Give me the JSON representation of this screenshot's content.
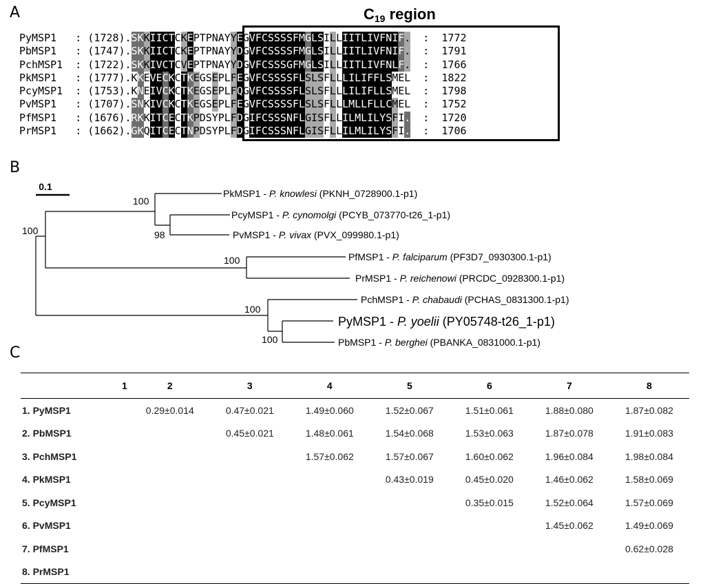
{
  "panels": {
    "a": "A",
    "b": "B",
    "c": "C"
  },
  "alignment": {
    "region_title_main": "C",
    "region_title_sub": "19",
    "region_title_rest": " region",
    "rows": [
      {
        "name": "PyMSP1",
        "start": "(1728)",
        "seq": ".SKKIICTCKEPTPNAYYEGVFCSSSSFMGLSILLIITLIVFNIF.",
        "end": "1772",
        "shade": "  dblbbb   bb      lbbbbbbbbbllbbbbbbbbbbbbbbbdll"
      },
      {
        "name": "PbMSP1",
        "start": "(1747)",
        "seq": ".SKKIICTCKEPTPNAYYDGVFCSSSSFMGLSILLIITLIVFNIF.",
        "end": "1791",
        "shade": ""
      },
      {
        "name": "PchMSP1",
        "start": "(1722)",
        "seq": ".SKKIVCTCVEPTPNAYYDGVFCSSSGFMGLSILLIITLIVFNLF.",
        "end": "1766",
        "shade": ""
      },
      {
        "name": "PkMSP1",
        "start": "(1777)",
        "seq": ".KKEVECKCTKEGSEPLFEGVFCSSSSFLSLSFLLLILIFFLSMEL",
        "end": "1822",
        "shade": ""
      },
      {
        "name": "PcyMSP1",
        "start": "(1753)",
        "seq": ".KNEIVCKCTKEGSEPLFQGVFCSSSSFLSLSFLLLILIFLLSMEL",
        "end": "1798",
        "shade": ""
      },
      {
        "name": "PvMSP1",
        "start": "(1707)",
        "seq": ".SNKIVCKCTKEGSEPLFEGVFCSSSSFLSLSFLLLMLLFLLCMEL",
        "end": "1752",
        "shade": ""
      },
      {
        "name": "PfMSP1",
        "start": "(1676)",
        "seq": ".RKKITCECTKPDSYPLFDGIFCSSSNFLGISFLLILMLILYSFI.",
        "end": "1720",
        "shade": ""
      },
      {
        "name": "PrMSP1",
        "start": "(1662)",
        "seq": ".GKQITCECTNPDSYPLFDGIFCSSSNFLGISFLLILMLILYSFI.",
        "end": "1706",
        "shade": ""
      }
    ]
  },
  "tree": {
    "scale_label": "0.1",
    "bootstraps": [
      "100",
      "98",
      "100",
      "100",
      "100",
      "100"
    ],
    "taxa": [
      {
        "gene": "PkMSP1",
        "sep": " - ",
        "species": "P. knowlesi",
        "id": "(PKNH_0728900.1-p1)"
      },
      {
        "gene": "PcyMSP1",
        "sep": " - ",
        "species": "P. cynomolgi",
        "id": "(PCYB_073770-t26_1-p1)"
      },
      {
        "gene": "PvMSP1",
        "sep": "  - ",
        "species": "P. vivax",
        "id": "(PVX_099980.1-p1)"
      },
      {
        "gene": "PfMSP1",
        "sep": " - ",
        "species": "P. falciparum",
        "id": "(PF3D7_0930300.1-p1)"
      },
      {
        "gene": "PrMSP1",
        "sep": " - ",
        "species": "P. reichenowi",
        "id": "(PRCDC_0928300.1-p1)"
      },
      {
        "gene": "PchMSP1",
        "sep": " - ",
        "species": "P. chabaudi",
        "id": "(PCHAS_0831300.1-p1)"
      },
      {
        "gene": "PyMSP1",
        "sep": " - ",
        "species": "P. yoelii",
        "id": "(PY05748-t26_1-p1)"
      },
      {
        "gene": "PbMSP1",
        "sep": " - ",
        "species": "P. berghei",
        "id": "(PBANKA_0831000.1-p1)"
      }
    ]
  },
  "distance_table": {
    "columns": [
      "",
      "1",
      "2",
      "3",
      "4",
      "5",
      "6",
      "7",
      "8"
    ],
    "rows": [
      {
        "label": "1. PyMSP1",
        "cells": [
          "",
          "0.29±0.014",
          "0.47±0.021",
          "1.49±0.060",
          "1.52±0.067",
          "1.51±0.061",
          "1.88±0.080",
          "1.87±0.082"
        ]
      },
      {
        "label": "2. PbMSP1",
        "cells": [
          "",
          "",
          "0.45±0.021",
          "1.48±0.061",
          "1.54±0.068",
          "1.53±0.063",
          "1.87±0.078",
          "1.91±0.083"
        ]
      },
      {
        "label": "3. PchMSP1",
        "cells": [
          "",
          "",
          "",
          "1.57±0.062",
          "1.57±0.067",
          "1.60±0.062",
          "1.96±0.084",
          "1.98±0.084"
        ]
      },
      {
        "label": "4. PkMSP1",
        "cells": [
          "",
          "",
          "",
          "",
          "0.43±0.019",
          "0.45±0.020",
          "1.46±0.062",
          "1.58±0.069"
        ]
      },
      {
        "label": "5. PcyMSP1",
        "cells": [
          "",
          "",
          "",
          "",
          "",
          "0.35±0.015",
          "1.52±0.064",
          "1.57±0.069"
        ]
      },
      {
        "label": "6. PvMSP1",
        "cells": [
          "",
          "",
          "",
          "",
          "",
          "",
          "1.45±0.062",
          "1.49±0.069"
        ]
      },
      {
        "label": "7. PfMSP1",
        "cells": [
          "",
          "",
          "",
          "",
          "",
          "",
          "",
          "0.62±0.028"
        ]
      },
      {
        "label": "8. PrMSP1",
        "cells": [
          "",
          "",
          "",
          "",
          "",
          "",
          "",
          ""
        ]
      }
    ]
  }
}
